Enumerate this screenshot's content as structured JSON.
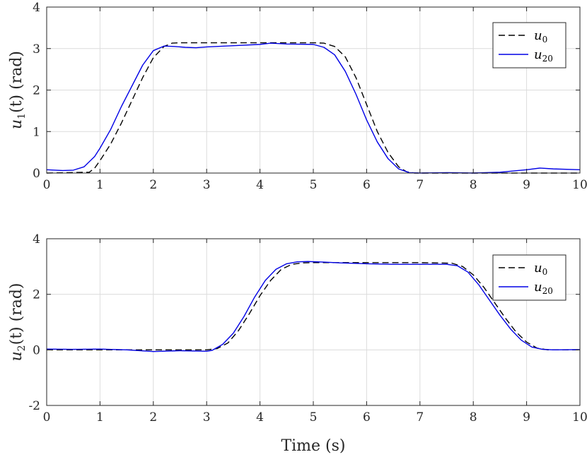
{
  "chart_data": [
    {
      "type": "line",
      "ylabel": "u1(t) (rad)",
      "ylabel_parts": {
        "sym": "u",
        "sub": "1",
        "arg": "(t)",
        "unit": " (rad)"
      },
      "xlabel": "",
      "xlim": [
        0,
        10
      ],
      "ylim": [
        0,
        4
      ],
      "xticks": [
        "0",
        "1",
        "2",
        "3",
        "4",
        "5",
        "6",
        "7",
        "8",
        "9",
        "10"
      ],
      "yticks": [
        "0",
        "1",
        "2",
        "3",
        "4"
      ],
      "grid": true,
      "legend_position": "top-right",
      "series": [
        {
          "name": "u0",
          "name_sym": "u",
          "name_sub": "0",
          "color": "#000000",
          "style": "dashed",
          "x": [
            0,
            0.8,
            0.9,
            1.0,
            1.2,
            1.4,
            1.6,
            1.8,
            2.0,
            2.2,
            2.35,
            2.5,
            3,
            3.5,
            4,
            4.5,
            5,
            5.2,
            5.4,
            5.6,
            5.8,
            6,
            6.2,
            6.4,
            6.6,
            6.75,
            6.9,
            7,
            8,
            9,
            10
          ],
          "y": [
            0,
            0.02,
            0.12,
            0.3,
            0.7,
            1.2,
            1.75,
            2.3,
            2.78,
            3.05,
            3.13,
            3.14,
            3.14,
            3.14,
            3.14,
            3.14,
            3.14,
            3.13,
            3.05,
            2.8,
            2.3,
            1.65,
            1.0,
            0.5,
            0.15,
            0.03,
            0,
            0,
            0,
            0,
            0
          ]
        },
        {
          "name": "u20",
          "name_sym": "u",
          "name_sub": "20",
          "color": "#0000e6",
          "style": "solid",
          "x": [
            0,
            0.3,
            0.5,
            0.7,
            0.9,
            1.0,
            1.2,
            1.4,
            1.6,
            1.8,
            2.0,
            2.2,
            2.4,
            2.6,
            2.8,
            3,
            3.5,
            4,
            4.2,
            4.5,
            5,
            5.2,
            5.4,
            5.6,
            5.8,
            6,
            6.2,
            6.4,
            6.6,
            6.8,
            7,
            7.5,
            8,
            8.5,
            9,
            9.25,
            9.5,
            10
          ],
          "y": [
            0.08,
            0.06,
            0.07,
            0.15,
            0.4,
            0.6,
            1.05,
            1.6,
            2.1,
            2.6,
            2.95,
            3.06,
            3.05,
            3.03,
            3.02,
            3.04,
            3.07,
            3.1,
            3.13,
            3.11,
            3.1,
            3.03,
            2.85,
            2.45,
            1.9,
            1.28,
            0.75,
            0.35,
            0.1,
            0.01,
            0,
            0.01,
            0,
            0.02,
            0.08,
            0.12,
            0.1,
            0.08
          ]
        }
      ]
    },
    {
      "type": "line",
      "ylabel": "u2(t) (rad)",
      "ylabel_parts": {
        "sym": "u",
        "sub": "2",
        "arg": "(t)",
        "unit": " (rad)"
      },
      "xlabel": "Time (s)",
      "xlim": [
        0,
        10
      ],
      "ylim": [
        -2,
        4
      ],
      "xticks": [
        "0",
        "1",
        "2",
        "3",
        "4",
        "5",
        "6",
        "7",
        "8",
        "9",
        "10"
      ],
      "yticks": [
        "-2",
        "0",
        "2",
        "4"
      ],
      "grid": true,
      "legend_position": "top-right",
      "series": [
        {
          "name": "u0",
          "name_sym": "u",
          "name_sub": "0",
          "color": "#000000",
          "style": "dashed",
          "x": [
            0,
            1,
            2,
            3,
            3.2,
            3.4,
            3.6,
            3.8,
            4.0,
            4.2,
            4.4,
            4.6,
            4.8,
            5,
            6,
            7,
            7.6,
            7.8,
            8.0,
            8.2,
            8.4,
            8.6,
            8.8,
            9.0,
            9.2,
            9.4,
            9.6,
            10
          ],
          "y": [
            0,
            0,
            0,
            0,
            0.05,
            0.25,
            0.7,
            1.3,
            1.95,
            2.5,
            2.9,
            3.08,
            3.13,
            3.14,
            3.14,
            3.14,
            3.12,
            3.0,
            2.7,
            2.25,
            1.7,
            1.15,
            0.65,
            0.28,
            0.06,
            0,
            0,
            0
          ]
        },
        {
          "name": "u20",
          "name_sym": "u",
          "name_sub": "20",
          "color": "#0000e6",
          "style": "solid",
          "x": [
            0,
            0.5,
            1,
            1.5,
            2,
            2.5,
            3,
            3.1,
            3.3,
            3.5,
            3.7,
            3.9,
            4.1,
            4.3,
            4.5,
            4.7,
            4.9,
            5.2,
            5.5,
            6,
            6.5,
            7,
            7.5,
            7.7,
            7.9,
            8.1,
            8.3,
            8.5,
            8.7,
            8.9,
            9.1,
            9.3,
            9.5,
            10
          ],
          "y": [
            0.03,
            0.02,
            0.03,
            0,
            -0.06,
            -0.03,
            -0.05,
            -0.02,
            0.2,
            0.6,
            1.2,
            1.9,
            2.5,
            2.9,
            3.1,
            3.17,
            3.18,
            3.16,
            3.13,
            3.1,
            3.08,
            3.08,
            3.08,
            3.03,
            2.8,
            2.35,
            1.8,
            1.25,
            0.75,
            0.35,
            0.1,
            0.02,
            0.0,
            0.01
          ]
        }
      ]
    }
  ]
}
